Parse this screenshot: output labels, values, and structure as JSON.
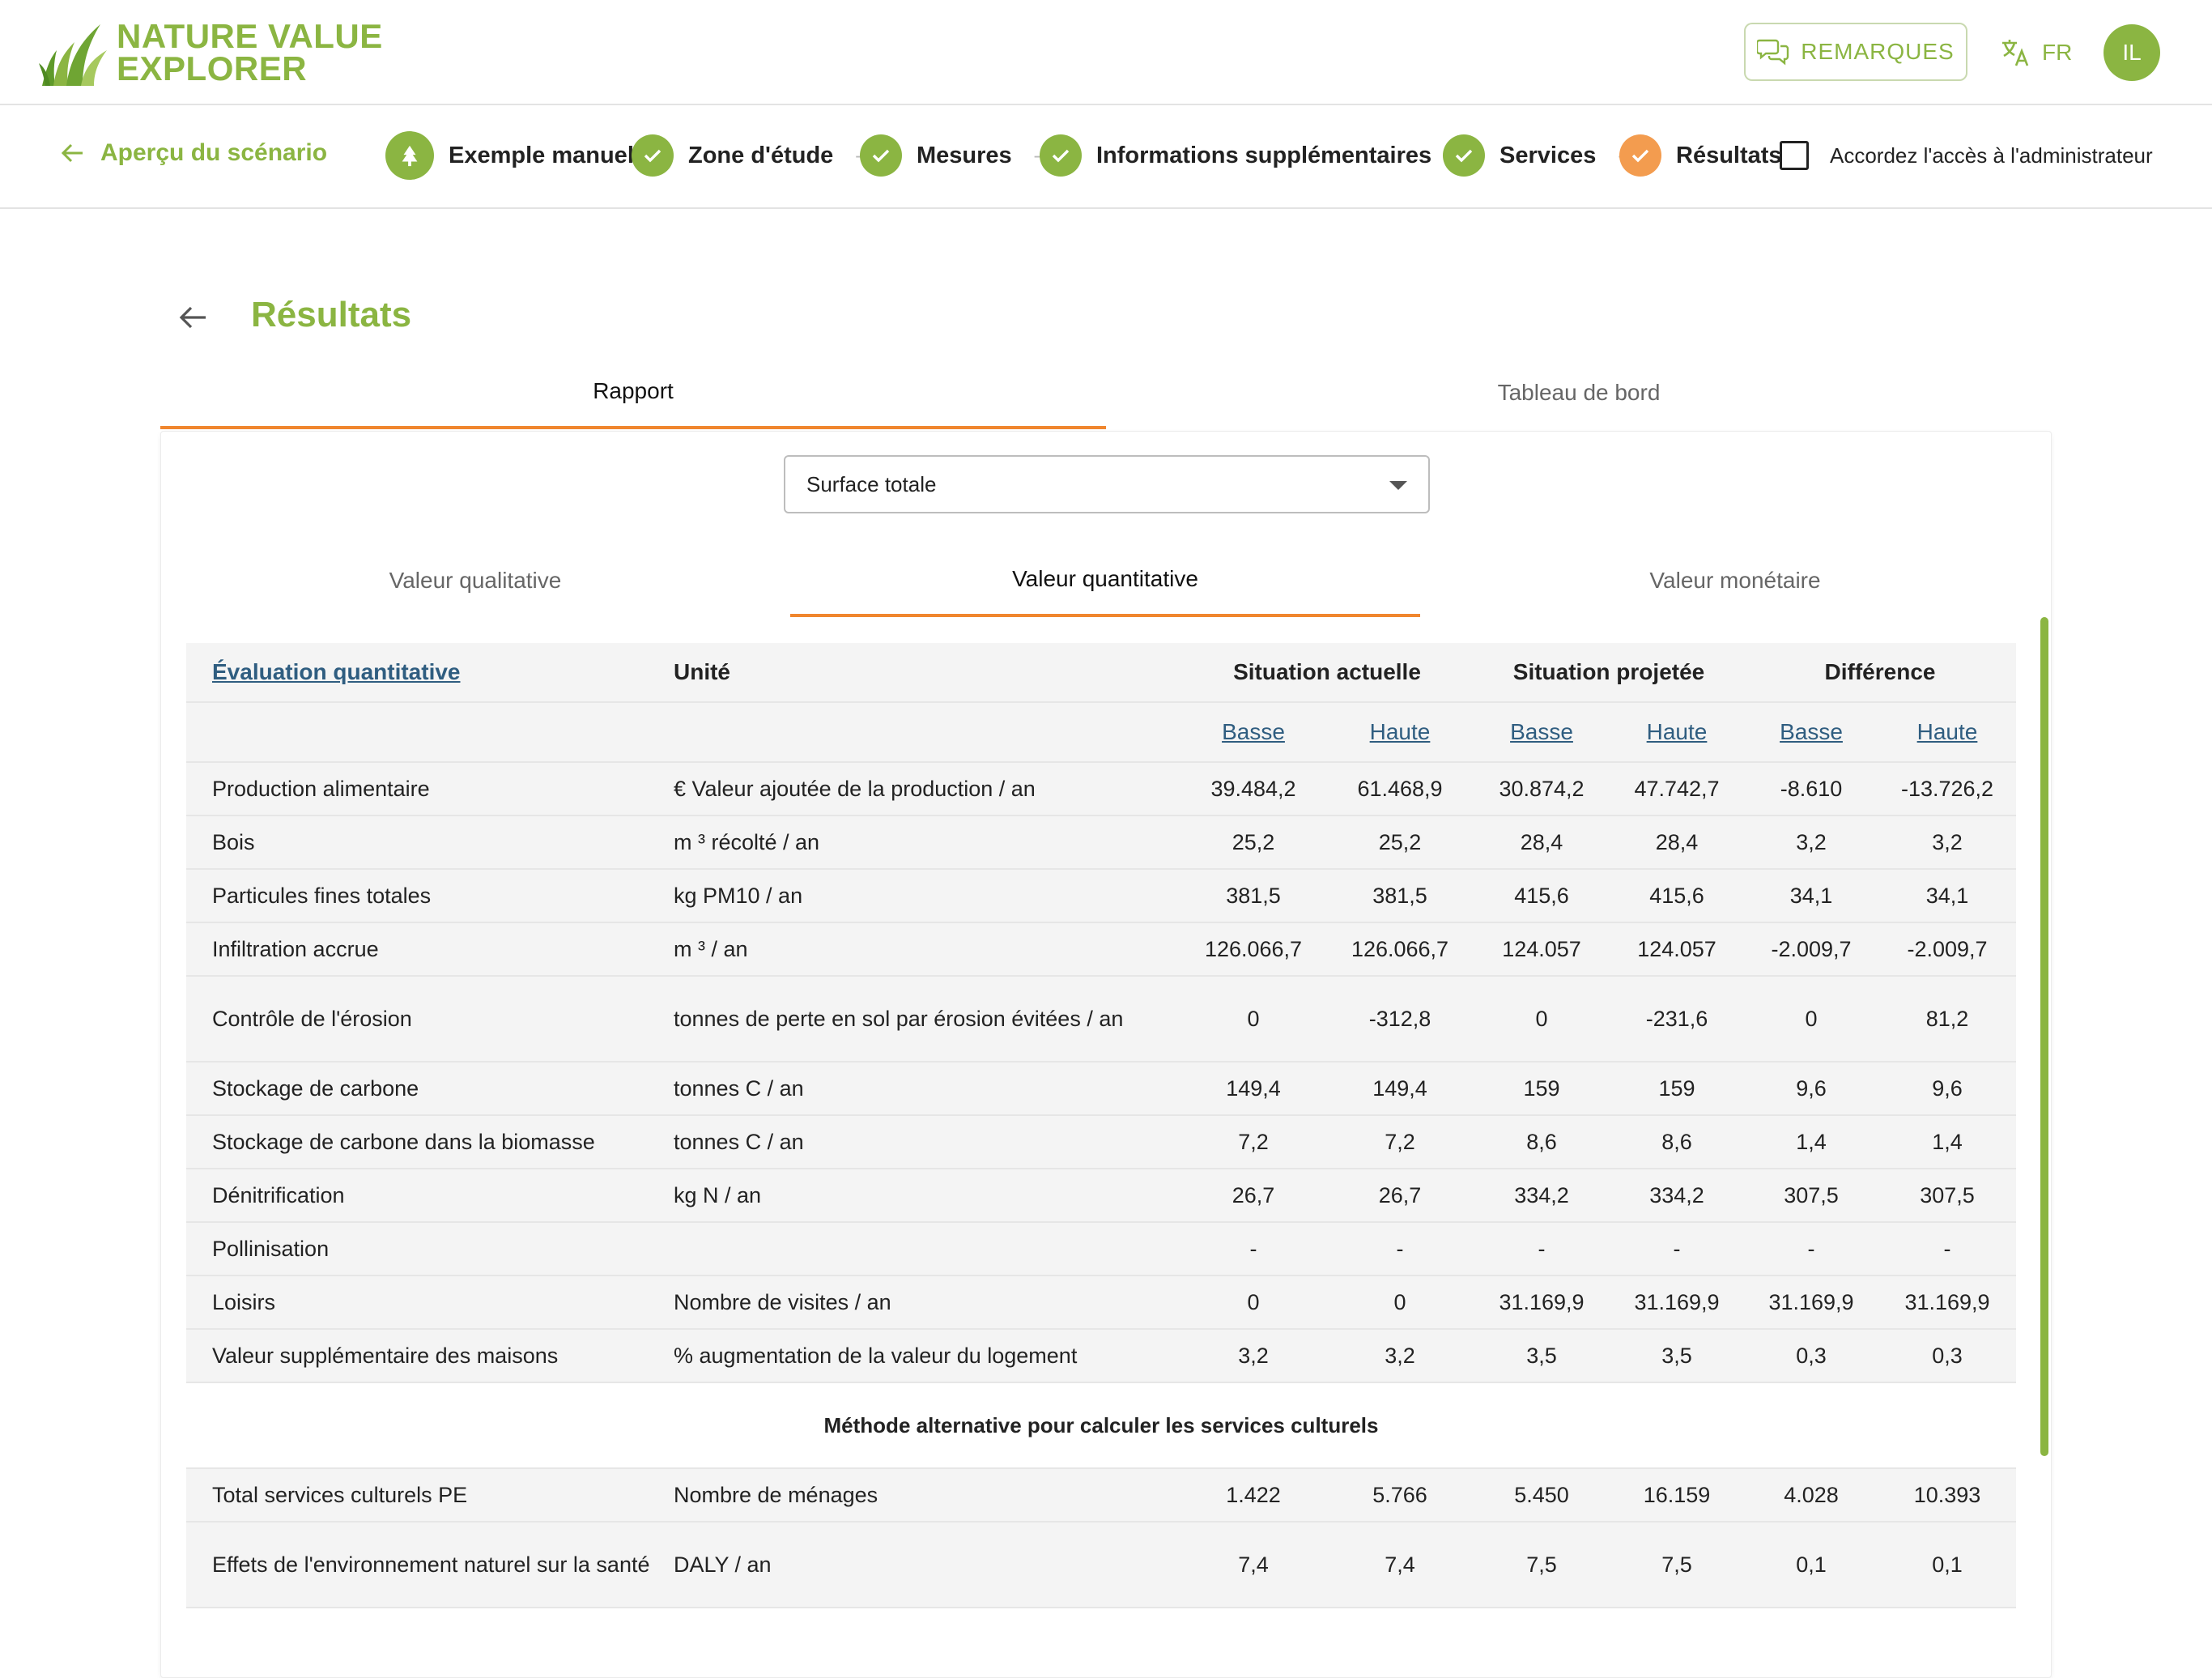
{
  "app": {
    "logo_line1": "NATURE VALUE",
    "logo_line2": "EXPLORER",
    "remarks_label": "REMARQUES",
    "language": "FR",
    "avatar_initials": "IL",
    "accent_color": "#8bb542",
    "active_color": "#f0862e"
  },
  "stepper": {
    "back_label": "Aperçu du scénario",
    "steps": [
      {
        "label": "Exemple manuel",
        "status": "scenario"
      },
      {
        "label": "Zone d'étude",
        "status": "done"
      },
      {
        "label": "Mesures",
        "status": "done"
      },
      {
        "label": "Informations supplémentaires",
        "status": "done"
      },
      {
        "label": "Services",
        "status": "done"
      },
      {
        "label": "Résultats",
        "status": "current"
      }
    ],
    "separator": "—",
    "admin_access_label": "Accordez l'accès à l'administrateur",
    "admin_access_checked": false
  },
  "page": {
    "title": "Résultats",
    "tabs": [
      "Rapport",
      "Tableau de bord"
    ],
    "active_tab": "Rapport",
    "area_select": "Surface totale",
    "subtabs": [
      "Valeur qualitative",
      "Valeur quantitative",
      "Valeur monétaire"
    ],
    "active_subtab": "Valeur quantitative"
  },
  "table": {
    "headers": {
      "evaluation": "Évaluation quantitative",
      "unit": "Unité",
      "current": "Situation actuelle",
      "projected": "Situation projetée",
      "difference": "Différence"
    },
    "sub_headers": [
      "Basse",
      "Haute",
      "Basse",
      "Haute",
      "Basse",
      "Haute"
    ],
    "rows": [
      {
        "service": "Production alimentaire",
        "unit": "€ Valeur ajoutée de la production / an",
        "values": [
          "39.484,2",
          "61.468,9",
          "30.874,2",
          "47.742,7",
          "-8.610",
          "-13.726,2"
        ]
      },
      {
        "service": "Bois",
        "unit": "m ³ récolté / an",
        "values": [
          "25,2",
          "25,2",
          "28,4",
          "28,4",
          "3,2",
          "3,2"
        ]
      },
      {
        "service": "Particules fines totales",
        "unit": "kg PM10 / an",
        "values": [
          "381,5",
          "381,5",
          "415,6",
          "415,6",
          "34,1",
          "34,1"
        ]
      },
      {
        "service": "Infiltration accrue",
        "unit": "m ³ / an",
        "values": [
          "126.066,7",
          "126.066,7",
          "124.057",
          "124.057",
          "-2.009,7",
          "-2.009,7"
        ]
      },
      {
        "service": "Contrôle de l'érosion",
        "unit": "tonnes de perte en sol par érosion évitées / an",
        "values": [
          "0",
          "-312,8",
          "0",
          "-231,6",
          "0",
          "81,2"
        ]
      },
      {
        "service": "Stockage de carbone",
        "unit": "tonnes C / an",
        "values": [
          "149,4",
          "149,4",
          "159",
          "159",
          "9,6",
          "9,6"
        ]
      },
      {
        "service": "Stockage de carbone dans la biomasse",
        "unit": "tonnes C / an",
        "values": [
          "7,2",
          "7,2",
          "8,6",
          "8,6",
          "1,4",
          "1,4"
        ]
      },
      {
        "service": "Dénitrification",
        "unit": "kg N / an",
        "values": [
          "26,7",
          "26,7",
          "334,2",
          "334,2",
          "307,5",
          "307,5"
        ]
      },
      {
        "service": "Pollinisation",
        "unit": "",
        "values": [
          "-",
          "-",
          "-",
          "-",
          "-",
          "-"
        ]
      },
      {
        "service": "Loisirs",
        "unit": "Nombre de visites / an",
        "values": [
          "0",
          "0",
          "31.169,9",
          "31.169,9",
          "31.169,9",
          "31.169,9"
        ]
      },
      {
        "service": "Valeur supplémentaire des maisons",
        "unit": "% augmentation de la valeur du logement",
        "values": [
          "3,2",
          "3,2",
          "3,5",
          "3,5",
          "0,3",
          "0,3"
        ]
      }
    ],
    "alt_section_title": "Méthode alternative pour calculer les services culturels",
    "alt_rows": [
      {
        "service": "Total services culturels PE",
        "unit": "Nombre de ménages",
        "values": [
          "1.422",
          "5.766",
          "5.450",
          "16.159",
          "4.028",
          "10.393"
        ]
      },
      {
        "service": "Effets de l'environnement naturel sur la santé",
        "unit": "DALY / an",
        "values": [
          "7,4",
          "7,4",
          "7,5",
          "7,5",
          "0,1",
          "0,1"
        ]
      }
    ]
  }
}
